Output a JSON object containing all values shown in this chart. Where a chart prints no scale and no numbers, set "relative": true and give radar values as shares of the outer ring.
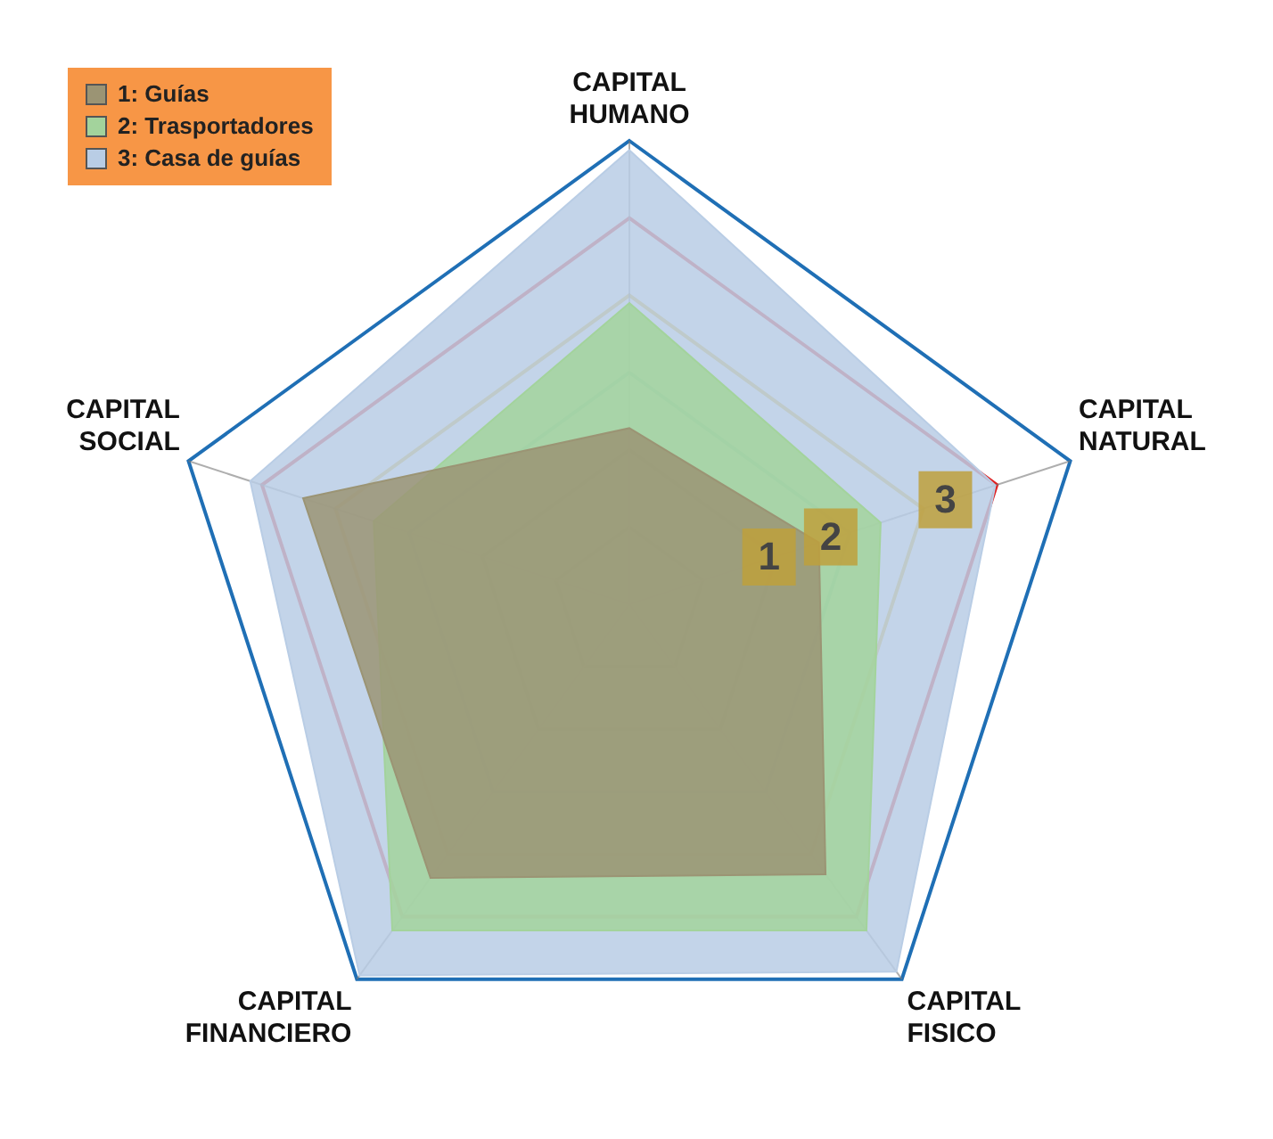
{
  "chart_data": {
    "type": "radar",
    "relative": true,
    "categories": [
      "CAPITAL HUMANO",
      "CAPITAL NATURAL",
      "CAPITAL FISICO",
      "CAPITAL FINANCIERO",
      "CAPITAL SOCIAL"
    ],
    "series": [
      {
        "name": "1: Guías",
        "color": "#9b9474",
        "values": [
          0.38,
          0.43,
          0.72,
          0.73,
          0.74
        ]
      },
      {
        "name": "2: Trasportadores",
        "color": "#a3d39c",
        "values": [
          0.65,
          0.57,
          0.87,
          0.87,
          0.58
        ]
      },
      {
        "name": "3: Casa de guías",
        "color": "#b9cde5",
        "values": [
          0.98,
          0.83,
          0.98,
          0.99,
          0.86
        ]
      }
    ],
    "annotations": [
      "1",
      "2",
      "3"
    ],
    "grid": true,
    "legend": "top left"
  }
}
